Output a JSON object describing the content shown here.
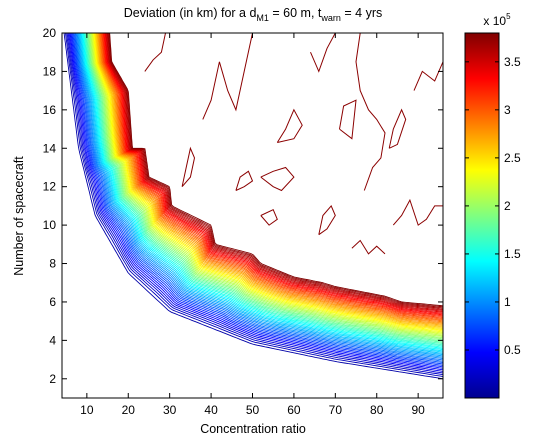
{
  "chart_data": {
    "type": "contour",
    "title": {
      "prefix": "Deviation (in km) for a d",
      "sub1": "M1",
      "middle": " = 60 m, t",
      "sub2": "warn",
      "suffix": " = 4 yrs"
    },
    "xlabel": "Concentration ratio",
    "ylabel": "Number of spacecraft",
    "xlim": [
      4,
      96
    ],
    "ylim": [
      1,
      20
    ],
    "xticks": [
      10,
      20,
      30,
      40,
      50,
      60,
      70,
      80,
      90
    ],
    "yticks": [
      2,
      4,
      6,
      8,
      10,
      12,
      14,
      16,
      18,
      20
    ],
    "colorbar": {
      "multiplier_base": "x 10",
      "multiplier_exp": "5",
      "range": [
        0,
        380000
      ],
      "ticks": [
        50000,
        100000,
        150000,
        200000,
        250000,
        300000,
        350000
      ],
      "tick_labels": [
        "0.5",
        "1",
        "1.5",
        "2",
        "2.5",
        "3",
        "3.5"
      ],
      "colormap": "jet"
    },
    "contour_levels": 60,
    "band": {
      "inner_boundary": [
        [
          4.5,
          20
        ],
        [
          8,
          14
        ],
        [
          12,
          10.5
        ],
        [
          20,
          7.5
        ],
        [
          30,
          5.5
        ],
        [
          50,
          3.8
        ],
        [
          70,
          2.9
        ],
        [
          96,
          2.0
        ]
      ],
      "outer_boundary": [
        [
          15.5,
          20
        ],
        [
          16,
          18.5
        ],
        [
          20,
          17
        ],
        [
          21,
          14
        ],
        [
          24,
          14
        ],
        [
          25,
          12.5
        ],
        [
          30,
          12
        ],
        [
          30.5,
          11
        ],
        [
          40,
          10
        ],
        [
          41,
          9
        ],
        [
          50,
          8.5
        ],
        [
          52,
          8
        ],
        [
          60,
          7.3
        ],
        [
          67,
          7
        ],
        [
          70,
          6.8
        ],
        [
          82,
          6.3
        ],
        [
          86,
          6
        ],
        [
          96,
          5.8
        ]
      ]
    },
    "saturated_contours": [
      [
        [
          52,
          12.5
        ],
        [
          55,
          12
        ],
        [
          57,
          11.8
        ],
        [
          60,
          12.5
        ],
        [
          58,
          13
        ],
        [
          55,
          12.8
        ],
        [
          52,
          12.5
        ]
      ],
      [
        [
          38,
          15.5
        ],
        [
          40,
          16.5
        ],
        [
          42,
          18.5
        ],
        [
          44,
          17
        ],
        [
          46,
          16
        ],
        [
          48,
          18
        ],
        [
          50,
          20
        ]
      ],
      [
        [
          24,
          18
        ],
        [
          26,
          18.6
        ],
        [
          28,
          19
        ],
        [
          29,
          20
        ]
      ],
      [
        [
          64,
          19
        ],
        [
          66,
          18
        ],
        [
          68,
          19.2
        ],
        [
          70,
          20
        ]
      ],
      [
        [
          71,
          15
        ],
        [
          72,
          16.2
        ],
        [
          75,
          16.5
        ],
        [
          74,
          14.5
        ],
        [
          71,
          15
        ]
      ],
      [
        [
          77,
          11.8
        ],
        [
          79,
          13
        ],
        [
          81,
          13.5
        ],
        [
          82,
          14.8
        ],
        [
          80,
          15.5
        ],
        [
          78,
          16
        ],
        [
          76,
          17
        ],
        [
          75,
          18.5
        ],
        [
          76,
          20
        ]
      ],
      [
        [
          84,
          10
        ],
        [
          86,
          10.5
        ],
        [
          88,
          11.3
        ],
        [
          90,
          10
        ],
        [
          92,
          10.3
        ],
        [
          94,
          11
        ],
        [
          96,
          11
        ]
      ],
      [
        [
          89,
          17
        ],
        [
          91,
          18
        ],
        [
          94,
          17.5
        ],
        [
          96,
          18.5
        ]
      ],
      [
        [
          83,
          14
        ],
        [
          85,
          14.2
        ],
        [
          87,
          15.5
        ],
        [
          86,
          16
        ],
        [
          84,
          15
        ],
        [
          83,
          14
        ]
      ],
      [
        [
          66,
          9.5
        ],
        [
          68,
          9.8
        ],
        [
          70,
          10.5
        ],
        [
          69,
          11
        ],
        [
          67,
          10.5
        ],
        [
          66,
          9.5
        ]
      ],
      [
        [
          46,
          11.8
        ],
        [
          48,
          12
        ],
        [
          50,
          12.3
        ],
        [
          49,
          12.8
        ],
        [
          47,
          12.5
        ],
        [
          46,
          11.8
        ]
      ],
      [
        [
          56,
          14.3
        ],
        [
          58,
          15
        ],
        [
          60,
          16
        ],
        [
          62,
          15.2
        ],
        [
          60,
          14.5
        ],
        [
          56,
          14.3
        ]
      ],
      [
        [
          33,
          12
        ],
        [
          35,
          12.5
        ],
        [
          36,
          13.5
        ],
        [
          35,
          14
        ],
        [
          34,
          13
        ],
        [
          33,
          12
        ]
      ],
      [
        [
          52,
          10.5
        ],
        [
          54,
          10
        ],
        [
          56,
          10.3
        ],
        [
          55,
          10.8
        ],
        [
          52,
          10.5
        ]
      ],
      [
        [
          74,
          8.8
        ],
        [
          76,
          9.2
        ],
        [
          78,
          8.5
        ],
        [
          80,
          8.9
        ],
        [
          82,
          8.5
        ]
      ]
    ]
  }
}
